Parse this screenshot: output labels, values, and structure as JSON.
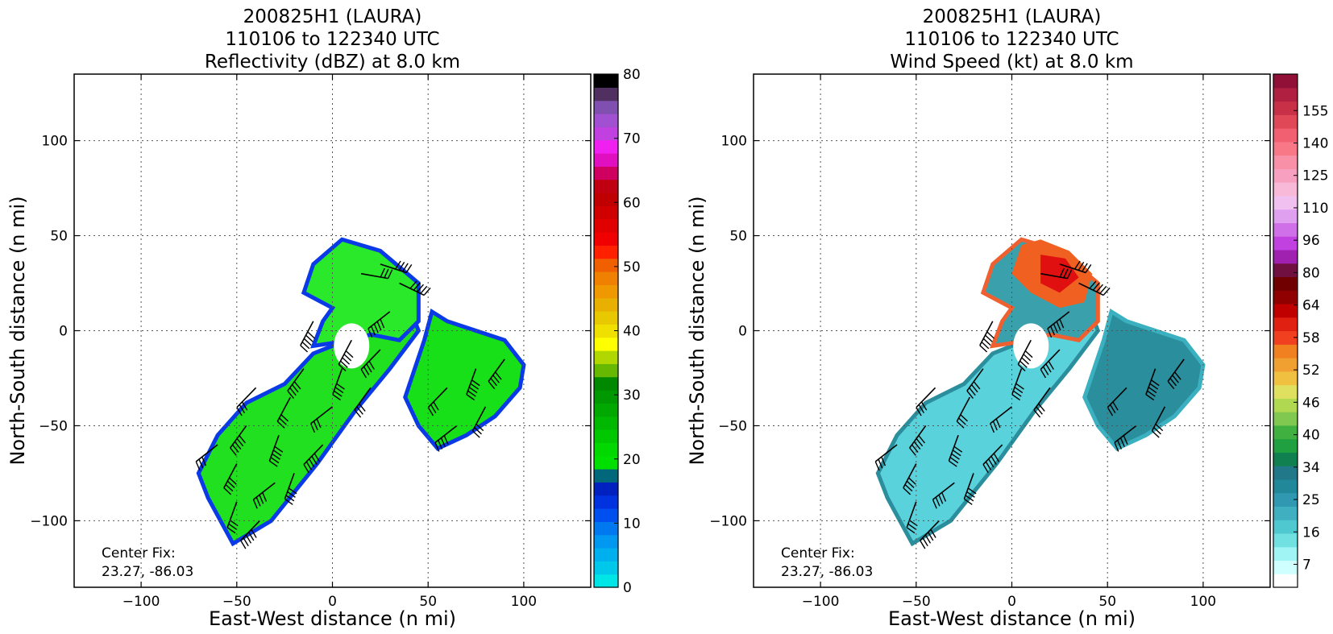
{
  "chart_data": [
    {
      "type": "heatmap",
      "title": [
        "200825H1 (LAURA)",
        "110106 to 122340 UTC",
        "Reflectivity (dBZ) at 8.0 km"
      ],
      "xlabel": "East-West distance (n mi)",
      "ylabel": "North-South distance (n mi)",
      "xlim": [
        -135,
        135
      ],
      "ylim": [
        -135,
        135
      ],
      "xticks": [
        "−100",
        "−50",
        "0",
        "50",
        "100"
      ],
      "yticks": [
        "100",
        "50",
        "0",
        "−50",
        "−100"
      ],
      "grid": true,
      "center_fix": [
        "Center Fix:",
        "23.27, -86.03"
      ],
      "colorbar": {
        "min": 0,
        "max": 80,
        "tick_labels": [
          "0",
          "10",
          "20",
          "30",
          "40",
          "50",
          "60",
          "70",
          "80"
        ],
        "tick_values": [
          0,
          10,
          20,
          30,
          40,
          50,
          60,
          70,
          80
        ],
        "colors": [
          "#00e6e6",
          "#00c8ea",
          "#00b0ee",
          "#0098f0",
          "#0078f0",
          "#0050f0",
          "#0032e0",
          "#0020c0",
          "#00687a",
          "#00e000",
          "#00d800",
          "#00c800",
          "#00b800",
          "#00a800",
          "#009800",
          "#008800",
          "#66b800",
          "#b0d800",
          "#ffff00",
          "#f0e000",
          "#e8c800",
          "#e8b000",
          "#f09800",
          "#f08000",
          "#f06000",
          "#ff2000",
          "#f00000",
          "#e00000",
          "#d00000",
          "#c00000",
          "#c00010",
          "#d00060",
          "#e010c0",
          "#f020f0",
          "#c040e0",
          "#a050d0",
          "#8050b0",
          "#503060",
          "#000000"
        ]
      },
      "barbs_present": true
    },
    {
      "type": "heatmap",
      "title": [
        "200825H1 (LAURA)",
        "110106 to 122340 UTC",
        "Wind Speed (kt) at 8.0 km"
      ],
      "xlabel": "East-West distance (n mi)",
      "ylabel": "North-South distance (n mi)",
      "xlim": [
        -135,
        135
      ],
      "ylim": [
        -135,
        135
      ],
      "xticks": [
        "−100",
        "−50",
        "0",
        "50",
        "100"
      ],
      "yticks": [
        "100",
        "50",
        "0",
        "−50",
        "−100"
      ],
      "grid": true,
      "center_fix": [
        "Center Fix:",
        "23.27, -86.03"
      ],
      "colorbar": {
        "tick_labels": [
          "7",
          "16",
          "25",
          "34",
          "40",
          "46",
          "52",
          "58",
          "64",
          "80",
          "96",
          "110",
          "125",
          "140",
          "155"
        ],
        "colors": [
          "#ffffff",
          "#d0ffff",
          "#a0f4f4",
          "#70e0e0",
          "#50c8d0",
          "#40b0c0",
          "#3098b0",
          "#208898",
          "#207888",
          "#108050",
          "#20a040",
          "#40b040",
          "#80c850",
          "#b0d850",
          "#e0e060",
          "#f0c040",
          "#f0a030",
          "#f08020",
          "#f04020",
          "#e02010",
          "#c00000",
          "#900000",
          "#700000",
          "#701040",
          "#a020b0",
          "#c040e0",
          "#d070e8",
          "#e0a0f0",
          "#f0c0f0",
          "#f8b8d8",
          "#f8a0c0",
          "#f890a8",
          "#f87888",
          "#f06070",
          "#e04858",
          "#c83048",
          "#b02040",
          "#901038"
        ]
      },
      "barbs_present": true
    }
  ]
}
